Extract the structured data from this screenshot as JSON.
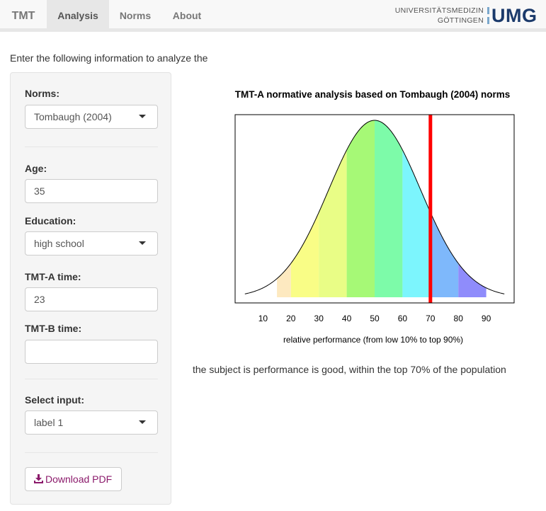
{
  "nav": {
    "brand": "TMT",
    "tabs": [
      {
        "label": "Analysis",
        "active": true
      },
      {
        "label": "Norms",
        "active": false
      },
      {
        "label": "About",
        "active": false
      }
    ],
    "logo": {
      "line1": "UNIVERSITÄTSMEDIZIN",
      "line2": "GÖTTINGEN",
      "mark": "UMG"
    }
  },
  "intro_text": "Enter the following information to analyze the",
  "sidebar": {
    "norms": {
      "label": "Norms:",
      "value": "Tombaugh (2004)"
    },
    "age": {
      "label": "Age:",
      "value": "35"
    },
    "education": {
      "label": "Education:",
      "value": "high school"
    },
    "tmt_a": {
      "label": "TMT-A time:",
      "value": "23"
    },
    "tmt_b": {
      "label": "TMT-B time:",
      "value": ""
    },
    "select_input": {
      "label": "Select input:",
      "value": "label 1"
    },
    "download_label": "Download PDF",
    "download_icon": "download-icon"
  },
  "chart_data": {
    "type": "area",
    "title": "TMT-A normative analysis based on Tombaugh (2004) norms",
    "xlabel": "relative performance (from low 10% to top 90%)",
    "ylabel": "",
    "xticks": [
      10,
      20,
      30,
      40,
      50,
      60,
      70,
      80,
      90
    ],
    "xlim": [
      0,
      100
    ],
    "curve": "normal density centered at 50",
    "bands": [
      {
        "from": 15,
        "to": 20,
        "color": "#fde9c0"
      },
      {
        "from": 20,
        "to": 30,
        "color": "#f9fd86"
      },
      {
        "from": 30,
        "to": 40,
        "color": "#e9fd86"
      },
      {
        "from": 40,
        "to": 50,
        "color": "#a6f976"
      },
      {
        "from": 50,
        "to": 60,
        "color": "#7dfba9"
      },
      {
        "from": 60,
        "to": 70,
        "color": "#7cf5fd"
      },
      {
        "from": 70,
        "to": 80,
        "color": "#7eb8fb"
      },
      {
        "from": 80,
        "to": 90,
        "color": "#8f8cfb"
      }
    ],
    "marker": {
      "x": 70,
      "color": "#ff0000"
    },
    "grid": false,
    "legend": "none"
  },
  "result_text": "the subject is performance is good, within the top 70% of the population"
}
